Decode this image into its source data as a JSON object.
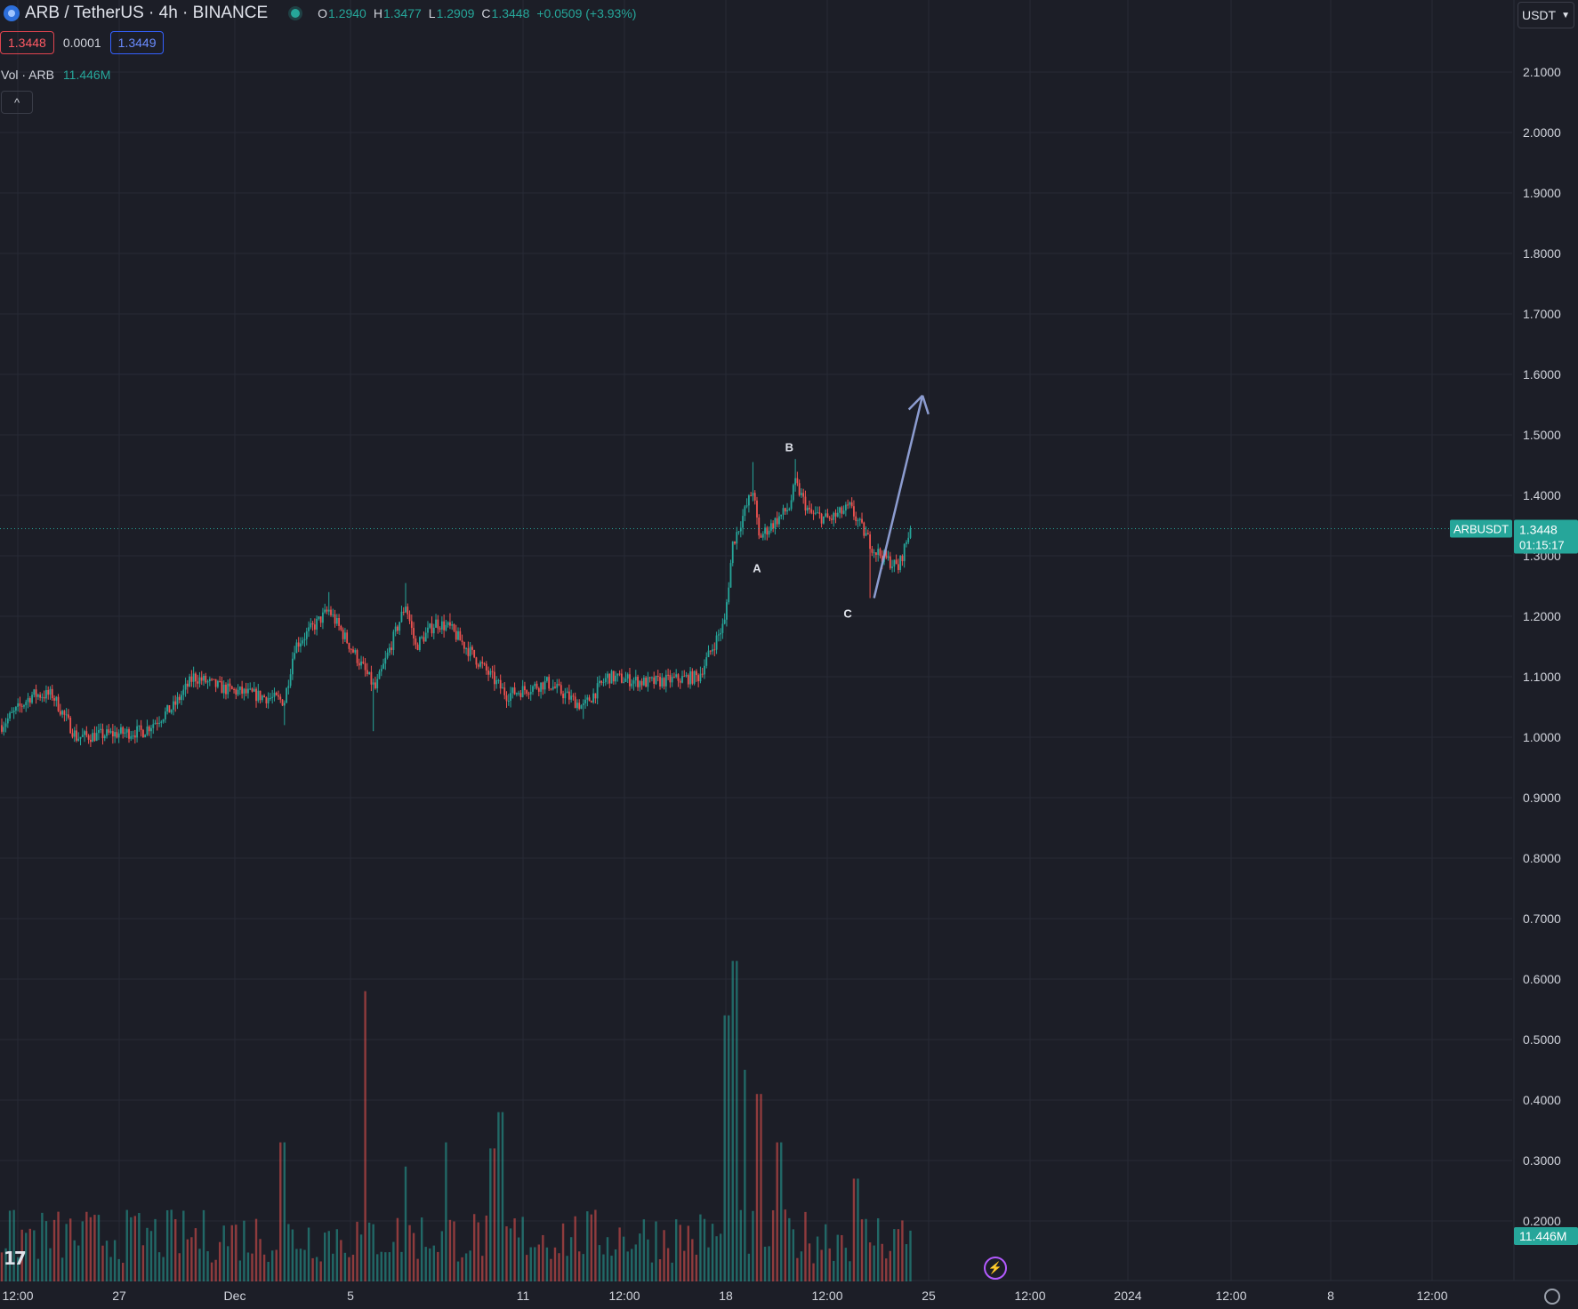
{
  "header": {
    "symbol": "ARB / TetherUS · 4h · BINANCE",
    "ohlc": {
      "o_label": "O",
      "o": "1.2940",
      "h_label": "H",
      "h": "1.3477",
      "l_label": "L",
      "l": "1.2909",
      "c_label": "C",
      "c": "1.3448"
    },
    "change": "+0.0509 (+3.93%)",
    "sell_price": "1.3448",
    "spread": "0.0001",
    "buy_price": "1.3449",
    "currency": "USDT"
  },
  "volume_indicator": {
    "label": "Vol · ARB",
    "value": "11.446M"
  },
  "colors": {
    "background": "#1c1e27",
    "up": "#26a69a",
    "down": "#ef5350",
    "grid": "#272a35",
    "arrow": "#8c9cd0",
    "sell": "#e0444f",
    "buy": "#3461ff"
  },
  "icons": [
    "tradingview-logo-icon",
    "chevron-up-icon",
    "chevron-down-icon",
    "lightning-icon",
    "gear-icon"
  ],
  "chart_data": {
    "type": "candlestick",
    "title": "ARB / TetherUS · 4h · BINANCE",
    "ylim": [
      0.15,
      2.15
    ],
    "yticks": [
      "2.1000",
      "2.0000",
      "1.9000",
      "1.8000",
      "1.7000",
      "1.6000",
      "1.5000",
      "1.4000",
      "1.3000",
      "1.2000",
      "1.1000",
      "1.0000",
      "0.9000",
      "0.8000",
      "0.7000",
      "0.6000",
      "0.5000",
      "0.4000",
      "0.3000",
      "0.2000"
    ],
    "x_tick_labels": [
      "12:00",
      "27",
      "Dec",
      "5",
      "11",
      "12:00",
      "18",
      "12:00",
      "25",
      "12:00",
      "2024",
      "12:00",
      "8",
      "12:00"
    ],
    "current_price": {
      "symbol": "ARBUSDT",
      "price": "1.3448",
      "countdown": "01:15:17"
    },
    "volume_last": "11.446M",
    "key_points": [
      {
        "t": 0,
        "price": 1.02
      },
      {
        "t": 15,
        "price": 1.07
      },
      {
        "t": 25,
        "price": 1.07
      },
      {
        "t": 37,
        "price": 1.0
      },
      {
        "t": 70,
        "price": 1.01
      },
      {
        "t": 85,
        "price": 1.05
      },
      {
        "t": 95,
        "price": 1.1
      },
      {
        "t": 110,
        "price": 1.08
      },
      {
        "t": 140,
        "price": 1.06
      },
      {
        "t": 145,
        "price": 1.15
      },
      {
        "t": 162,
        "price": 1.21
      },
      {
        "t": 185,
        "price": 1.08
      },
      {
        "t": 200,
        "price": 1.22
      },
      {
        "t": 205,
        "price": 1.15
      },
      {
        "t": 215,
        "price": 1.19
      },
      {
        "t": 222,
        "price": 1.18
      },
      {
        "t": 250,
        "price": 1.07
      },
      {
        "t": 270,
        "price": 1.09
      },
      {
        "t": 288,
        "price": 1.05
      },
      {
        "t": 300,
        "price": 1.1
      },
      {
        "t": 320,
        "price": 1.09
      },
      {
        "t": 345,
        "price": 1.1
      },
      {
        "t": 358,
        "price": 1.19
      },
      {
        "t": 362,
        "price": 1.32
      },
      {
        "t": 372,
        "price": 1.41
      },
      {
        "t": 375,
        "price": 1.33
      },
      {
        "t": 390,
        "price": 1.38
      },
      {
        "t": 393,
        "price": 1.42
      },
      {
        "t": 400,
        "price": 1.37
      },
      {
        "t": 410,
        "price": 1.36
      },
      {
        "t": 420,
        "price": 1.38
      },
      {
        "t": 432,
        "price": 1.31
      },
      {
        "t": 444,
        "price": 1.28
      },
      {
        "t": 450,
        "price": 1.345
      }
    ],
    "volume_spikes": [
      {
        "t": 180,
        "vol": 0.58
      },
      {
        "t": 363,
        "vol": 0.63
      },
      {
        "t": 359,
        "vol": 0.54
      },
      {
        "t": 368,
        "vol": 0.45
      },
      {
        "t": 375,
        "vol": 0.41
      },
      {
        "t": 247,
        "vol": 0.38
      },
      {
        "t": 139,
        "vol": 0.33
      },
      {
        "t": 220,
        "vol": 0.33
      },
      {
        "t": 385,
        "vol": 0.33
      },
      {
        "t": 243,
        "vol": 0.32
      },
      {
        "t": 423,
        "vol": 0.27
      },
      {
        "t": 200,
        "vol": 0.29
      }
    ],
    "annotations": [
      {
        "text": "A",
        "t": 374,
        "price": 1.28
      },
      {
        "text": "B",
        "t": 390,
        "price": 1.48
      },
      {
        "text": "C",
        "t": 419,
        "price": 1.205
      }
    ],
    "projection_arrow": {
      "from": {
        "t": 432,
        "price": 1.23
      },
      "to": {
        "t": 456,
        "price": 1.565
      }
    }
  }
}
